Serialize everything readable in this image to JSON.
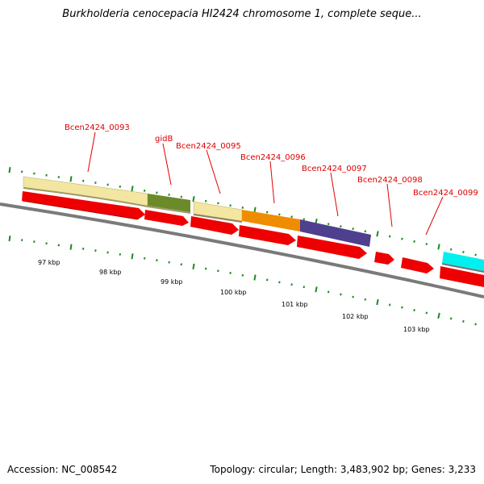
{
  "title": "Burkholderia cenocepacia HI2424 chromosome 1, complete seque...",
  "accession": "Accession: NC_008542",
  "topology": "Topology: circular; Length: 3,483,902 bp; Genes: 3,233",
  "colors": {
    "tick": "#1f8a1f",
    "backbone": "#808080",
    "gene_label": "#e00000",
    "cds": "#ee0000"
  },
  "gene_labels": [
    {
      "text": "Bcen2424_0093"
    },
    {
      "text": "gidB"
    },
    {
      "text": "Bcen2424_0095"
    },
    {
      "text": "Bcen2424_0096"
    },
    {
      "text": "Bcen2424_0097"
    },
    {
      "text": "Bcen2424_0098"
    },
    {
      "text": "Bcen2424_0099"
    }
  ],
  "kbp_labels": [
    "97 kbp",
    "98 kbp",
    "99 kbp",
    "100 kbp",
    "101 kbp",
    "102 kbp",
    "103 kbp"
  ],
  "features": [
    {
      "name": "feature-bcen2424-0093",
      "color": "#f3e6a0"
    },
    {
      "name": "feature-gidb",
      "color": "#6b8a2a"
    },
    {
      "name": "feature-bcen2424-0095",
      "color": "#f3e6a0"
    },
    {
      "name": "feature-bcen2424-0096",
      "color": "#f08c00"
    },
    {
      "name": "feature-bcen2424-0097",
      "color": "#4f3f8f"
    },
    {
      "name": "feature-next",
      "color": "#00f0f0"
    }
  ]
}
